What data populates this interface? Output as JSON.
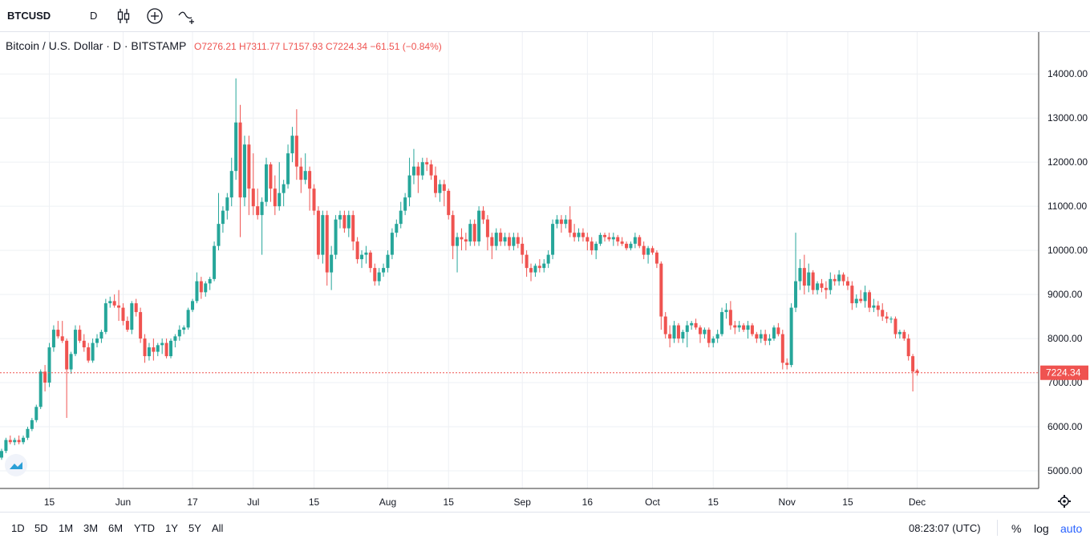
{
  "toolbar": {
    "symbol": "BTCUSD",
    "interval": "D",
    "icons": [
      "candles-icon",
      "compare-add-icon",
      "indicators-icon"
    ]
  },
  "legend": {
    "title": "Bitcoin / U.S. Dollar · D · BITSTAMP",
    "open": "O7276.21",
    "high": "H7311.77",
    "low": "L7157.93",
    "close": "C7224.34",
    "change": "−61.51 (−0.84%)"
  },
  "colors": {
    "up": "#26a69a",
    "down": "#ef5350",
    "grid": "#eef0f4",
    "text": "#131722"
  },
  "chart_data": {
    "type": "candlestick",
    "title": "Bitcoin / U.S. Dollar · D · BITSTAMP",
    "ylim": [
      4600,
      14950
    ],
    "yticks": [
      5000,
      6000,
      7000,
      8000,
      9000,
      10000,
      11000,
      12000,
      13000,
      14000
    ],
    "ytick_labels": [
      "5000.00",
      "6000.00",
      "7000.00",
      "8000.00",
      "9000.00",
      "10000.00",
      "11000.00",
      "12000.00",
      "13000.00",
      "14000.00"
    ],
    "last_price": 7224.34,
    "last_price_label": "7224.34",
    "x_labels": [
      {
        "label": "15",
        "index": 11
      },
      {
        "label": "Jun",
        "index": 28
      },
      {
        "label": "17",
        "index": 44
      },
      {
        "label": "Jul",
        "index": 58
      },
      {
        "label": "15",
        "index": 72
      },
      {
        "label": "Aug",
        "index": 89
      },
      {
        "label": "15",
        "index": 103
      },
      {
        "label": "Sep",
        "index": 120
      },
      {
        "label": "16",
        "index": 135
      },
      {
        "label": "Oct",
        "index": 150
      },
      {
        "label": "15",
        "index": 164
      },
      {
        "label": "Nov",
        "index": 181
      },
      {
        "label": "15",
        "index": 195
      },
      {
        "label": "Dec",
        "index": 211
      }
    ],
    "candles": [
      [
        5300,
        5500,
        5250,
        5450
      ],
      [
        5450,
        5750,
        5400,
        5700
      ],
      [
        5700,
        5800,
        5600,
        5650
      ],
      [
        5650,
        5750,
        5580,
        5700
      ],
      [
        5700,
        5800,
        5600,
        5650
      ],
      [
        5650,
        5800,
        5600,
        5750
      ],
      [
        5750,
        6000,
        5700,
        5950
      ],
      [
        5950,
        6200,
        5900,
        6150
      ],
      [
        6150,
        6500,
        6100,
        6450
      ],
      [
        6450,
        7300,
        6400,
        7250
      ],
      [
        7250,
        7400,
        6800,
        7000
      ],
      [
        7000,
        7900,
        6900,
        7800
      ],
      [
        7800,
        8300,
        7700,
        8200
      ],
      [
        8200,
        8400,
        8000,
        8050
      ],
      [
        8050,
        8400,
        7900,
        7950
      ],
      [
        7950,
        8000,
        6200,
        7300
      ],
      [
        7300,
        7700,
        7200,
        7650
      ],
      [
        7650,
        8300,
        7600,
        8200
      ],
      [
        8200,
        8300,
        7900,
        7950
      ],
      [
        7950,
        8100,
        7700,
        7800
      ],
      [
        7800,
        7900,
        7450,
        7500
      ],
      [
        7500,
        8000,
        7450,
        7900
      ],
      [
        7900,
        8100,
        7800,
        8000
      ],
      [
        8000,
        8200,
        7900,
        8150
      ],
      [
        8150,
        8900,
        8100,
        8800
      ],
      [
        8800,
        8950,
        8700,
        8850
      ],
      [
        8850,
        9000,
        8700,
        8750
      ],
      [
        8750,
        9100,
        8400,
        8700
      ],
      [
        8700,
        8800,
        8300,
        8400
      ],
      [
        8400,
        8500,
        8150,
        8200
      ],
      [
        8200,
        8850,
        8100,
        8800
      ],
      [
        8800,
        8900,
        8500,
        8600
      ],
      [
        8600,
        8700,
        7900,
        8000
      ],
      [
        8000,
        8100,
        7450,
        7600
      ],
      [
        7600,
        7900,
        7500,
        7800
      ],
      [
        7800,
        8000,
        7500,
        7700
      ],
      [
        7700,
        7900,
        7600,
        7850
      ],
      [
        7850,
        8000,
        7650,
        7900
      ],
      [
        7900,
        8000,
        7550,
        7600
      ],
      [
        7600,
        8000,
        7550,
        7950
      ],
      [
        7950,
        8100,
        7800,
        8050
      ],
      [
        8050,
        8300,
        7950,
        8200
      ],
      [
        8200,
        8300,
        8100,
        8250
      ],
      [
        8250,
        8700,
        8200,
        8650
      ],
      [
        8650,
        8900,
        8600,
        8850
      ],
      [
        8850,
        9500,
        8800,
        9300
      ],
      [
        9300,
        9400,
        8900,
        9050
      ],
      [
        9050,
        9300,
        8950,
        9250
      ],
      [
        9250,
        9400,
        9100,
        9350
      ],
      [
        9350,
        10200,
        9300,
        10100
      ],
      [
        10100,
        11300,
        10000,
        10600
      ],
      [
        10600,
        11000,
        10400,
        10900
      ],
      [
        10900,
        11300,
        10700,
        11200
      ],
      [
        11200,
        12100,
        11000,
        11800
      ],
      [
        11800,
        13900,
        11600,
        12900
      ],
      [
        12900,
        13300,
        10300,
        11200
      ],
      [
        11200,
        12600,
        11000,
        12400
      ],
      [
        12400,
        12600,
        10800,
        11400
      ],
      [
        11400,
        12200,
        10800,
        11000
      ],
      [
        11000,
        11400,
        10700,
        10800
      ],
      [
        10800,
        11200,
        9900,
        11100
      ],
      [
        11100,
        12100,
        11000,
        11950
      ],
      [
        11950,
        12000,
        11100,
        11400
      ],
      [
        11400,
        11700,
        10800,
        11000
      ],
      [
        11000,
        12000,
        10900,
        11300
      ],
      [
        11300,
        11600,
        11000,
        11500
      ],
      [
        11500,
        12400,
        11400,
        12200
      ],
      [
        12200,
        12800,
        12000,
        12600
      ],
      [
        12600,
        13200,
        11600,
        11900
      ],
      [
        11900,
        12100,
        11300,
        11600
      ],
      [
        11600,
        12200,
        11500,
        11800
      ],
      [
        11800,
        11900,
        10900,
        11400
      ],
      [
        11400,
        11500,
        10800,
        10900
      ],
      [
        10900,
        11000,
        9800,
        9900
      ],
      [
        9900,
        10900,
        9700,
        10800
      ],
      [
        10800,
        10900,
        9200,
        9500
      ],
      [
        9500,
        10100,
        9100,
        9900
      ],
      [
        9900,
        10800,
        9800,
        10700
      ],
      [
        10700,
        10900,
        10500,
        10800
      ],
      [
        10800,
        10900,
        10400,
        10500
      ],
      [
        10500,
        10900,
        10300,
        10800
      ],
      [
        10800,
        10900,
        10000,
        10200
      ],
      [
        10200,
        10300,
        9700,
        9800
      ],
      [
        9800,
        10000,
        9600,
        9900
      ],
      [
        9900,
        10100,
        9700,
        9950
      ],
      [
        9950,
        10000,
        9500,
        9600
      ],
      [
        9600,
        9700,
        9200,
        9300
      ],
      [
        9300,
        9600,
        9200,
        9500
      ],
      [
        9500,
        9700,
        9400,
        9600
      ],
      [
        9600,
        10000,
        9500,
        9900
      ],
      [
        9900,
        10500,
        9800,
        10400
      ],
      [
        10400,
        10700,
        10300,
        10600
      ],
      [
        10600,
        11100,
        10500,
        10900
      ],
      [
        10900,
        11300,
        10800,
        11200
      ],
      [
        11200,
        12100,
        11000,
        11700
      ],
      [
        11700,
        12300,
        11500,
        11900
      ],
      [
        11900,
        12000,
        11300,
        11700
      ],
      [
        11700,
        12100,
        11600,
        12000
      ],
      [
        12000,
        12100,
        11800,
        11950
      ],
      [
        11950,
        12050,
        11600,
        11700
      ],
      [
        11700,
        11900,
        11200,
        11300
      ],
      [
        11300,
        11600,
        11100,
        11500
      ],
      [
        11500,
        11600,
        11000,
        11350
      ],
      [
        11350,
        11400,
        10700,
        10800
      ],
      [
        10800,
        10900,
        9800,
        10100
      ],
      [
        10100,
        10400,
        9500,
        10300
      ],
      [
        10300,
        10500,
        10000,
        10250
      ],
      [
        10250,
        10400,
        10000,
        10200
      ],
      [
        10200,
        10700,
        10100,
        10600
      ],
      [
        10600,
        10700,
        10100,
        10200
      ],
      [
        10200,
        11000,
        10100,
        10900
      ],
      [
        10900,
        11000,
        10600,
        10700
      ],
      [
        10700,
        10800,
        10000,
        10300
      ],
      [
        10300,
        10400,
        9800,
        10100
      ],
      [
        10100,
        10500,
        10000,
        10400
      ],
      [
        10400,
        10500,
        10100,
        10200
      ],
      [
        10200,
        10400,
        10100,
        10300
      ],
      [
        10300,
        10400,
        10000,
        10100
      ],
      [
        10100,
        10400,
        10000,
        10300
      ],
      [
        10300,
        10400,
        10050,
        10150
      ],
      [
        10150,
        10300,
        9700,
        9900
      ],
      [
        9900,
        10000,
        9400,
        9600
      ],
      [
        9600,
        9700,
        9300,
        9500
      ],
      [
        9500,
        9700,
        9400,
        9650
      ],
      [
        9650,
        9800,
        9500,
        9600
      ],
      [
        9600,
        9800,
        9500,
        9700
      ],
      [
        9700,
        10000,
        9600,
        9900
      ],
      [
        9900,
        10700,
        9800,
        10600
      ],
      [
        10600,
        10800,
        10500,
        10700
      ],
      [
        10700,
        10800,
        10400,
        10600
      ],
      [
        10600,
        10800,
        10500,
        10700
      ],
      [
        10700,
        11000,
        10300,
        10400
      ],
      [
        10400,
        10600,
        10200,
        10300
      ],
      [
        10300,
        10500,
        10200,
        10400
      ],
      [
        10400,
        10500,
        10200,
        10300
      ],
      [
        10300,
        10400,
        10000,
        10200
      ],
      [
        10200,
        10300,
        9900,
        10000
      ],
      [
        10000,
        10200,
        9800,
        10150
      ],
      [
        10150,
        10400,
        10100,
        10350
      ],
      [
        10350,
        10400,
        10200,
        10300
      ],
      [
        10300,
        10400,
        10200,
        10250
      ],
      [
        10250,
        10400,
        10100,
        10300
      ],
      [
        10300,
        10350,
        10100,
        10200
      ],
      [
        10200,
        10300,
        10100,
        10150
      ],
      [
        10150,
        10200,
        10000,
        10050
      ],
      [
        10050,
        10200,
        10000,
        10150
      ],
      [
        10150,
        10400,
        10050,
        10300
      ],
      [
        10300,
        10350,
        10050,
        10100
      ],
      [
        10100,
        10200,
        9800,
        9900
      ],
      [
        9900,
        10100,
        9700,
        10050
      ],
      [
        10050,
        10100,
        9900,
        9950
      ],
      [
        9950,
        10000,
        9600,
        9700
      ],
      [
        9700,
        9750,
        8200,
        8500
      ],
      [
        8500,
        8600,
        8000,
        8100
      ],
      [
        8100,
        8300,
        7800,
        8000
      ],
      [
        8000,
        8400,
        7900,
        8300
      ],
      [
        8300,
        8350,
        7900,
        8000
      ],
      [
        8000,
        8200,
        7900,
        8150
      ],
      [
        8150,
        8400,
        7800,
        8300
      ],
      [
        8300,
        8400,
        8200,
        8350
      ],
      [
        8350,
        8450,
        8200,
        8250
      ],
      [
        8250,
        8300,
        7900,
        8100
      ],
      [
        8100,
        8250,
        8000,
        8200
      ],
      [
        8200,
        8250,
        7800,
        7900
      ],
      [
        7900,
        8050,
        7800,
        8000
      ],
      [
        8000,
        8200,
        7900,
        8100
      ],
      [
        8100,
        8700,
        8050,
        8600
      ],
      [
        8600,
        8800,
        8450,
        8650
      ],
      [
        8650,
        8850,
        8200,
        8300
      ],
      [
        8300,
        8400,
        8100,
        8250
      ],
      [
        8250,
        8400,
        8150,
        8300
      ],
      [
        8300,
        8350,
        8150,
        8200
      ],
      [
        8200,
        8400,
        8000,
        8300
      ],
      [
        8300,
        8350,
        8050,
        8100
      ],
      [
        8100,
        8150,
        7900,
        8000
      ],
      [
        8000,
        8200,
        7900,
        8100
      ],
      [
        8100,
        8200,
        7850,
        7950
      ],
      [
        7950,
        8100,
        7850,
        8000
      ],
      [
        8000,
        8300,
        7950,
        8250
      ],
      [
        8250,
        8350,
        8050,
        8100
      ],
      [
        8100,
        8200,
        7300,
        7450
      ],
      [
        7450,
        7550,
        7300,
        7400
      ],
      [
        7400,
        8800,
        7350,
        8700
      ],
      [
        8700,
        10400,
        8600,
        9300
      ],
      [
        9300,
        9800,
        9100,
        9600
      ],
      [
        9600,
        9900,
        9000,
        9200
      ],
      [
        9200,
        9700,
        9050,
        9500
      ],
      [
        9500,
        9550,
        9000,
        9100
      ],
      [
        9100,
        9300,
        9000,
        9250
      ],
      [
        9250,
        9350,
        9050,
        9150
      ],
      [
        9150,
        9300,
        8900,
        9100
      ],
      [
        9100,
        9500,
        9000,
        9350
      ],
      [
        9350,
        9450,
        9200,
        9300
      ],
      [
        9300,
        9550,
        9200,
        9450
      ],
      [
        9450,
        9500,
        9200,
        9300
      ],
      [
        9300,
        9400,
        9100,
        9200
      ],
      [
        9200,
        9300,
        8650,
        8800
      ],
      [
        8800,
        9000,
        8700,
        8900
      ],
      [
        8900,
        9100,
        8800,
        8850
      ],
      [
        8850,
        9200,
        8700,
        9050
      ],
      [
        9050,
        9100,
        8600,
        8700
      ],
      [
        8700,
        8900,
        8600,
        8750
      ],
      [
        8750,
        8850,
        8500,
        8650
      ],
      [
        8650,
        8800,
        8400,
        8500
      ],
      [
        8500,
        8600,
        8350,
        8450
      ],
      [
        8450,
        8500,
        8350,
        8450
      ],
      [
        8450,
        8500,
        8000,
        8100
      ],
      [
        8100,
        8200,
        8000,
        8150
      ],
      [
        8150,
        8200,
        7950,
        8000
      ],
      [
        8000,
        8100,
        7500,
        7600
      ],
      [
        7600,
        7650,
        6800,
        7250
      ],
      [
        7276.21,
        7311.77,
        7157.93,
        7224.34
      ]
    ]
  },
  "bottom_bar": {
    "ranges": [
      "1D",
      "5D",
      "1M",
      "3M",
      "6M",
      "YTD",
      "1Y",
      "5Y",
      "All"
    ],
    "clock": "08:23:07 (UTC)",
    "percent": "%",
    "log": "log",
    "auto": "auto"
  }
}
